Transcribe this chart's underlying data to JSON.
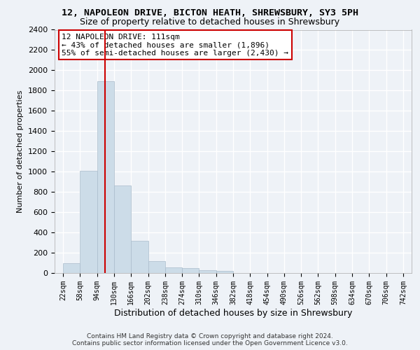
{
  "title_line1": "12, NAPOLEON DRIVE, BICTON HEATH, SHREWSBURY, SY3 5PH",
  "title_line2": "Size of property relative to detached houses in Shrewsbury",
  "xlabel": "Distribution of detached houses by size in Shrewsbury",
  "ylabel": "Number of detached properties",
  "bar_color": "#ccdce8",
  "bar_edge_color": "#aabccc",
  "bin_edges": [
    22,
    58,
    94,
    130,
    166,
    202,
    238,
    274,
    310,
    346,
    382,
    418,
    454,
    490,
    526,
    562,
    598,
    634,
    670,
    706,
    742
  ],
  "values": [
    95,
    1010,
    1890,
    860,
    315,
    115,
    58,
    48,
    30,
    22,
    0,
    0,
    0,
    0,
    0,
    0,
    0,
    0,
    0,
    0
  ],
  "tick_labels": [
    "22sqm",
    "58sqm",
    "94sqm",
    "130sqm",
    "166sqm",
    "202sqm",
    "238sqm",
    "274sqm",
    "310sqm",
    "346sqm",
    "382sqm",
    "418sqm",
    "454sqm",
    "490sqm",
    "526sqm",
    "562sqm",
    "598sqm",
    "634sqm",
    "670sqm",
    "706sqm",
    "742sqm"
  ],
  "ylim": [
    0,
    2400
  ],
  "yticks": [
    0,
    200,
    400,
    600,
    800,
    1000,
    1200,
    1400,
    1600,
    1800,
    2000,
    2200,
    2400
  ],
  "annotation_line1": "12 NAPOLEON DRIVE: 111sqm",
  "annotation_line2": "← 43% of detached houses are smaller (1,896)",
  "annotation_line3": "55% of semi-detached houses are larger (2,430) →",
  "vline_x": 111,
  "vline_color": "#cc0000",
  "annotation_box_color": "#ffffff",
  "annotation_box_edge": "#cc0000",
  "footer_line1": "Contains HM Land Registry data © Crown copyright and database right 2024.",
  "footer_line2": "Contains public sector information licensed under the Open Government Licence v3.0.",
  "background_color": "#eef2f7",
  "grid_color": "#ffffff",
  "title_fontsize": 9.5,
  "subtitle_fontsize": 9,
  "annot_fontsize": 8,
  "ylabel_fontsize": 8,
  "xlabel_fontsize": 9,
  "tick_fontsize": 7,
  "footer_fontsize": 6.5
}
